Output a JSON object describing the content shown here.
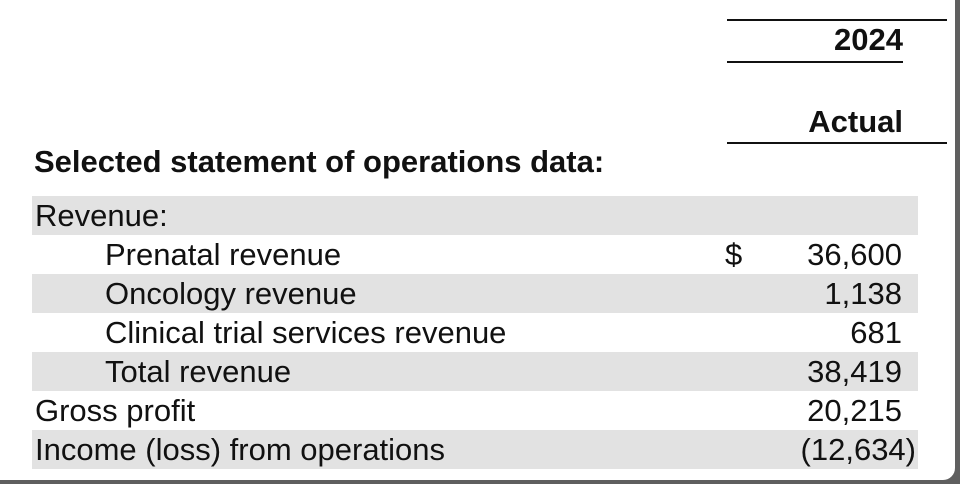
{
  "header": {
    "year": "2024",
    "basis": "Actual"
  },
  "section_title": "Selected statement of operations data:",
  "currency_symbol": "$",
  "rows": [
    {
      "label": "Revenue:",
      "value": ""
    },
    {
      "label": "Prenatal revenue",
      "value": "36,600"
    },
    {
      "label": "Oncology revenue",
      "value": "1,138"
    },
    {
      "label": "Clinical trial services revenue",
      "value": "681"
    },
    {
      "label": "Total revenue",
      "value": "38,419"
    },
    {
      "label": "Gross profit",
      "value": "20,215"
    },
    {
      "label": "Income (loss) from operations",
      "value": "(12,634)"
    }
  ]
}
